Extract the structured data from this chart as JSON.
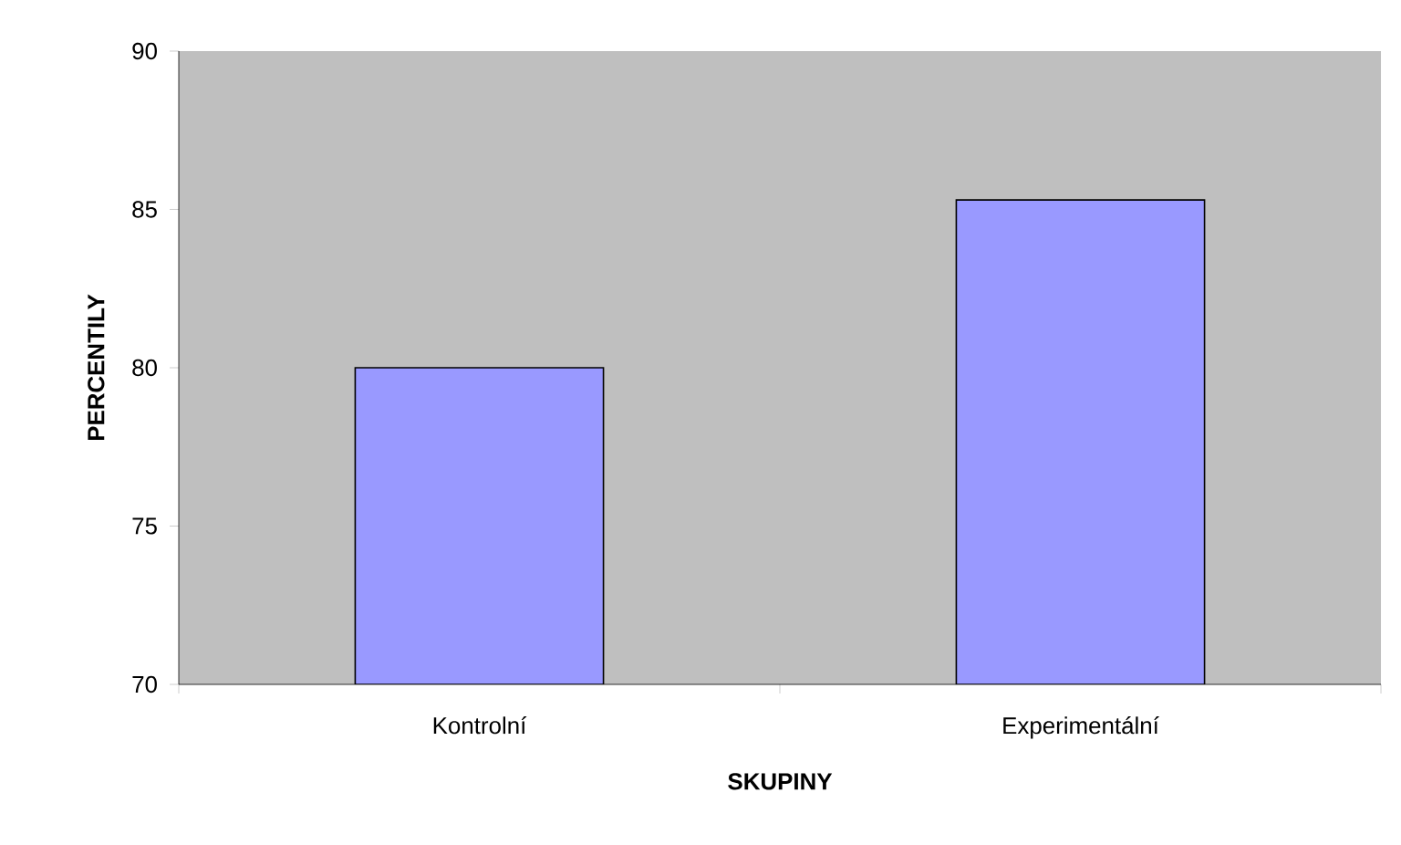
{
  "chart_data": {
    "type": "bar",
    "xlabel": "SKUPINY",
    "ylabel": "PERCENTILY",
    "categories": [
      "Kontrolní",
      "Experimentální"
    ],
    "values": [
      80,
      85.3
    ],
    "color": "#9999ff",
    "ylim": [
      70,
      90
    ],
    "yticks": [
      70,
      75,
      80,
      85,
      90
    ]
  }
}
